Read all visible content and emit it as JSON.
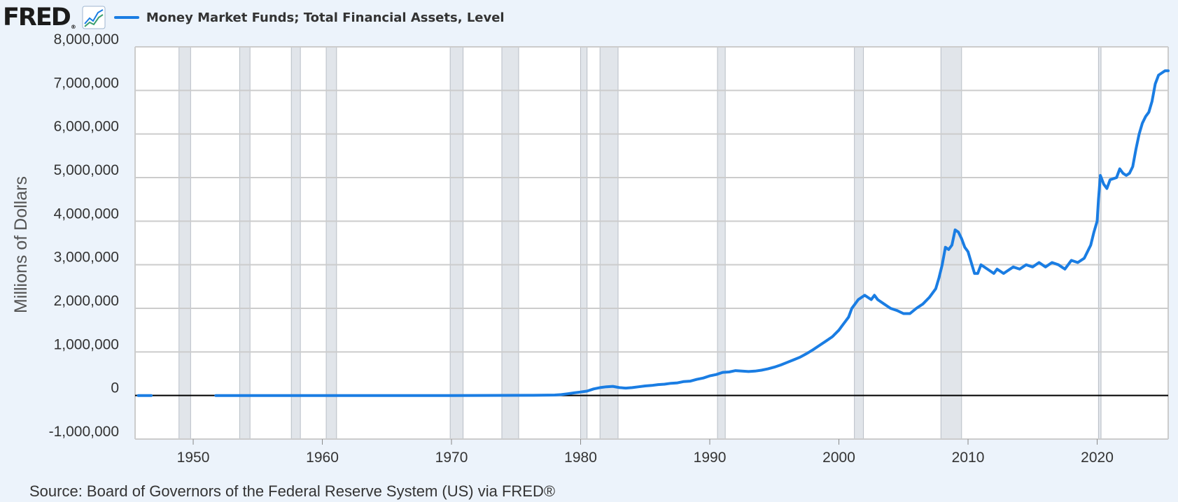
{
  "header": {
    "logo_text": "FRED",
    "logo_mark": "®",
    "chart_icon": "line-chart-icon",
    "legend_label": "Money Market Funds; Total Financial Assets, Level"
  },
  "source": "Source: Board of Governors of the Federal Reserve System (US) via FRED®",
  "colors": {
    "series": "#1a7de3",
    "background": "#ecf3fb",
    "plot": "#ffffff",
    "grid": "#cccccc",
    "recession": "#e1e5ea",
    "zero_line": "#000000"
  },
  "chart_data": {
    "type": "line",
    "title": "",
    "xlabel": "",
    "ylabel": "Millions of Dollars",
    "xlim": [
      1945.5,
      2025.5
    ],
    "ylim": [
      -1000000,
      8000000
    ],
    "grid": true,
    "legend_position": "top-left",
    "x_ticks": [
      1950,
      1960,
      1970,
      1980,
      1990,
      2000,
      2010,
      2020
    ],
    "x_tick_labels": [
      "1950",
      "1960",
      "1970",
      "1980",
      "1990",
      "2000",
      "2010",
      "2020"
    ],
    "y_ticks": [
      -1000000,
      0,
      1000000,
      2000000,
      3000000,
      4000000,
      5000000,
      6000000,
      7000000,
      8000000
    ],
    "y_tick_labels": [
      "-1,000,000",
      "0",
      "1,000,000",
      "2,000,000",
      "3,000,000",
      "4,000,000",
      "5,000,000",
      "6,000,000",
      "7,000,000",
      "8,000,000"
    ],
    "recessions": [
      [
        1948.9,
        1949.8
      ],
      [
        1953.6,
        1954.4
      ],
      [
        1957.6,
        1958.3
      ],
      [
        1960.3,
        1961.1
      ],
      [
        1969.9,
        1970.9
      ],
      [
        1973.9,
        1975.2
      ],
      [
        1980.0,
        1980.5
      ],
      [
        1981.5,
        1982.9
      ],
      [
        1990.6,
        1991.2
      ],
      [
        2001.2,
        2001.9
      ],
      [
        2007.9,
        2009.5
      ],
      [
        2020.1,
        2020.3
      ]
    ],
    "series": [
      {
        "name": "Money Market Funds; Total Financial Assets, Level",
        "segments": [
          {
            "x": [
              1945.75,
              1946.75
            ],
            "y": [
              0,
              0
            ]
          },
          {
            "x": [
              1951.75,
              1960,
              1970,
              1974,
              1976,
              1978,
              1978.5,
              1979,
              1979.5,
              1980,
              1980.5,
              1981,
              1981.5,
              1982,
              1982.5,
              1983,
              1983.5,
              1984,
              1984.5,
              1985,
              1985.5,
              1986,
              1986.5,
              1987,
              1987.5,
              1988,
              1988.5,
              1989,
              1989.5,
              1990,
              1990.5,
              1991,
              1991.5,
              1992,
              1992.5,
              1993,
              1993.5,
              1994,
              1994.5,
              1995,
              1995.5,
              1996,
              1996.5,
              1997,
              1997.5,
              1998,
              1998.5,
              1999,
              1999.5,
              2000,
              2000.25,
              2000.5,
              2000.75,
              2001,
              2001.25,
              2001.5,
              2002,
              2002.5,
              2002.75,
              2003,
              2003.5,
              2004,
              2004.5,
              2005,
              2005.5,
              2006,
              2006.5,
              2007,
              2007.25,
              2007.5,
              2007.75,
              2008,
              2008.25,
              2008.5,
              2008.75,
              2009,
              2009.25,
              2009.5,
              2009.75,
              2010,
              2010.5,
              2010.75,
              2011,
              2011.5,
              2012,
              2012.25,
              2012.5,
              2012.75,
              2013,
              2013.5,
              2014,
              2014.5,
              2015,
              2015.5,
              2016,
              2016.5,
              2017,
              2017.25,
              2017.5,
              2017.75,
              2018,
              2018.5,
              2019,
              2019.5,
              2019.75,
              2020,
              2020.1,
              2020.25,
              2020.5,
              2020.75,
              2021,
              2021.5,
              2021.75,
              2022,
              2022.25,
              2022.5,
              2022.75,
              2023,
              2023.25,
              2023.5,
              2023.75,
              2024,
              2024.25,
              2024.5,
              2024.75,
              2025,
              2025.25,
              2025.5
            ],
            "y": [
              0,
              0,
              0,
              3000,
              5000,
              10000,
              20000,
              40000,
              60000,
              80000,
              100000,
              150000,
              180000,
              200000,
              210000,
              180000,
              170000,
              180000,
              200000,
              220000,
              230000,
              250000,
              260000,
              280000,
              290000,
              320000,
              330000,
              370000,
              400000,
              450000,
              480000,
              530000,
              540000,
              570000,
              560000,
              550000,
              560000,
              580000,
              610000,
              650000,
              700000,
              760000,
              820000,
              880000,
              960000,
              1050000,
              1150000,
              1250000,
              1350000,
              1500000,
              1600000,
              1700000,
              1800000,
              2000000,
              2100000,
              2200000,
              2300000,
              2200000,
              2300000,
              2200000,
              2100000,
              2000000,
              1950000,
              1880000,
              1880000,
              2000000,
              2100000,
              2250000,
              2350000,
              2450000,
              2700000,
              3000000,
              3400000,
              3350000,
              3450000,
              3800000,
              3750000,
              3600000,
              3400000,
              3300000,
              2800000,
              2800000,
              3000000,
              2900000,
              2800000,
              2900000,
              2850000,
              2800000,
              2850000,
              2950000,
              2900000,
              3000000,
              2950000,
              3050000,
              2950000,
              3050000,
              3000000,
              2950000,
              2900000,
              3000000,
              3100000,
              3050000,
              3150000,
              3450000,
              3750000,
              4000000,
              4500000,
              5050000,
              4850000,
              4750000,
              4950000,
              5000000,
              5200000,
              5100000,
              5050000,
              5100000,
              5250000,
              5650000,
              6000000,
              6250000,
              6400000,
              6500000,
              6750000,
              7150000,
              7350000,
              7400000,
              7450000,
              7450000
            ]
          }
        ]
      }
    ]
  }
}
